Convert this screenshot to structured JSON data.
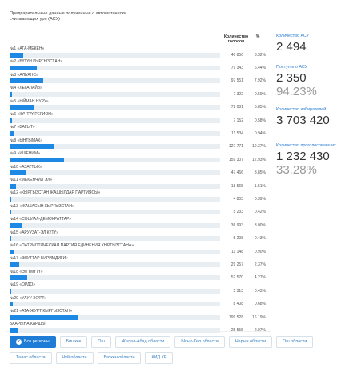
{
  "header": {
    "title": "Предварительные данные полученные с автоматически считывающих урн (АСУ)"
  },
  "table": {
    "columns": [
      "Количество голосов",
      "%"
    ],
    "rows": [
      {
        "name": "№1 «АТА-МЕКЕН»",
        "votes": "40 856",
        "pct": 3.32,
        "pct_label": "3.32%"
      },
      {
        "name": "№2 «БҮТҮН КЫРГЫЗСТАН»",
        "votes": "79 343",
        "pct": 6.44,
        "pct_label": "6.44%"
      },
      {
        "name": "№3 «АЛЬЯНС»",
        "votes": "97 551",
        "pct": 7.92,
        "pct_label": "7.92%"
      },
      {
        "name": "№4 «ЛЕГАЛАЙЗ»",
        "votes": "7 322",
        "pct": 0.59,
        "pct_label": "0.59%"
      },
      {
        "name": "№5 «ЫЙМАН НУРУ»",
        "votes": "72 081",
        "pct": 5.85,
        "pct_label": "5.85%"
      },
      {
        "name": "№6 «КҮЧТҮҮ РЕГИОН»",
        "votes": "7 152",
        "pct": 0.58,
        "pct_label": "0.58%"
      },
      {
        "name": "№7 «БАГЫТ»",
        "votes": "11 534",
        "pct": 0.94,
        "pct_label": "0.94%"
      },
      {
        "name": "№8 «ЫНТЫМАК»",
        "votes": "127 771",
        "pct": 10.37,
        "pct_label": "10.37%"
      },
      {
        "name": "№9 «ИШЕНИМ»",
        "votes": "159 307",
        "pct": 12.93,
        "pct_label": "12.93%"
      },
      {
        "name": "№10 «АЗАТТЫК»",
        "votes": "47 466",
        "pct": 3.85,
        "pct_label": "3.85%"
      },
      {
        "name": "№11 «МЕКЕНЧИЛ ЭЛ»",
        "votes": "18 565",
        "pct": 1.51,
        "pct_label": "1.51%"
      },
      {
        "name": "№12 «КЫРГЫЗСТАН ЖАШЫЛДАР ПАРТИЯСЫ»",
        "votes": "4 803",
        "pct": 0.39,
        "pct_label": "0.39%"
      },
      {
        "name": "№13 «ЖАШАСЫН КЫРГЫЗСТАН»",
        "votes": "5 233",
        "pct": 0.42,
        "pct_label": "0.42%"
      },
      {
        "name": "№14 «СОЦИАЛ-ДЕМОКРАТТАР»",
        "votes": "36 993",
        "pct": 3.0,
        "pct_label": "3.00%"
      },
      {
        "name": "№15 «АРУУЗАТ-ЭЛ КҮТҮ»",
        "votes": "5 298",
        "pct": 0.43,
        "pct_label": "0.43%"
      },
      {
        "name": "№16 «ПАТРИОТИЧЕСКАЯ ПАРТИЯ ЕДИНЕНИЯ КЫРГЫЗСТАНА»",
        "votes": "11 148",
        "pct": 0.9,
        "pct_label": "0.90%"
      },
      {
        "name": "№17 «ЭЛУТТАР БИРИМДИГИ»",
        "votes": "29 257",
        "pct": 2.37,
        "pct_label": "2.37%"
      },
      {
        "name": "№18 «ЭЛ ҮМҮТҮ»",
        "votes": "52 570",
        "pct": 4.27,
        "pct_label": "4.27%"
      },
      {
        "name": "№19 «ОРДО»",
        "votes": "5 313",
        "pct": 0.43,
        "pct_label": "0.43%"
      },
      {
        "name": "№20 «УЛУУ-ЖУРТ»",
        "votes": "8 408",
        "pct": 0.68,
        "pct_label": "0.68%"
      },
      {
        "name": "№21 «АТА-ЖУРТ КЫРГЫЗСТАН»",
        "votes": "199 528",
        "pct": 16.19,
        "pct_label": "16.19%"
      },
      {
        "name": "БААРЫНА КАРШЫ",
        "votes": "25 555",
        "pct": 2.07,
        "pct_label": "2.07%"
      }
    ]
  },
  "stats": [
    {
      "label": "Количество АСУ",
      "value": "2 494"
    },
    {
      "label": "Поступило АСУ",
      "value": "2 350",
      "percent": "94.23%"
    },
    {
      "label": "Количество избирателей",
      "value": "3 703 420"
    },
    {
      "label": "Количество проголосовавших",
      "value": "1 232 430",
      "percent": "33.28%"
    }
  ],
  "filters": [
    "Все регионы",
    "Бишкек",
    "Ош",
    "Жалал-Абад области",
    "Ысык-Көл области",
    "Нарын области",
    "Ош области",
    "Талас области",
    "Чүй области",
    "Баткен области",
    "КИД КР"
  ]
}
